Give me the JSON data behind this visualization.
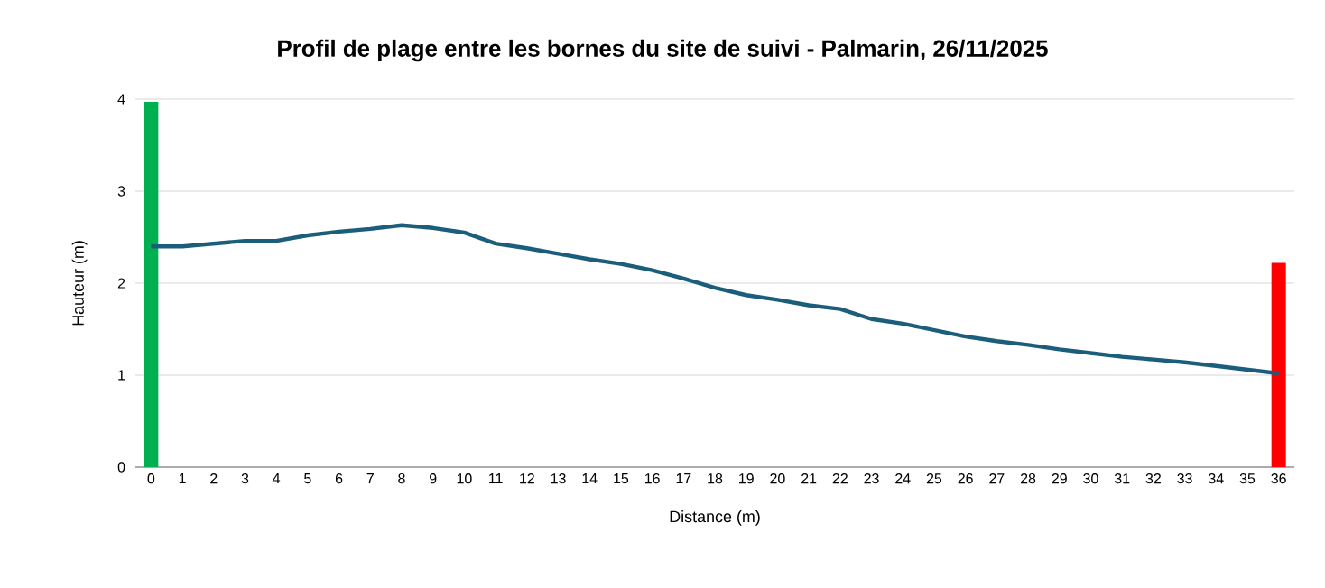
{
  "chart_data": {
    "type": "line",
    "title": "Profil de plage entre les bornes du site de suivi - Palmarin, 26/11/2025",
    "xlabel": "Distance (m)",
    "ylabel": "Hauteur (m)",
    "categories": [
      "0",
      "1",
      "2",
      "3",
      "4",
      "5",
      "6",
      "7",
      "8",
      "9",
      "10",
      "11",
      "12",
      "13",
      "14",
      "15",
      "16",
      "17",
      "18",
      "19",
      "20",
      "21",
      "22",
      "23",
      "24",
      "25",
      "26",
      "27",
      "28",
      "29",
      "30",
      "31",
      "32",
      "33",
      "34",
      "35",
      "36"
    ],
    "series": [
      {
        "type": "bar",
        "color": "#00b050",
        "values": [
          3.97,
          null,
          null,
          null,
          null,
          null,
          null,
          null,
          null,
          null,
          null,
          null,
          null,
          null,
          null,
          null,
          null,
          null,
          null,
          null,
          null,
          null,
          null,
          null,
          null,
          null,
          null,
          null,
          null,
          null,
          null,
          null,
          null,
          null,
          null,
          null,
          null
        ]
      },
      {
        "type": "bar",
        "color": "#ff0000",
        "values": [
          null,
          null,
          null,
          null,
          null,
          null,
          null,
          null,
          null,
          null,
          null,
          null,
          null,
          null,
          null,
          null,
          null,
          null,
          null,
          null,
          null,
          null,
          null,
          null,
          null,
          null,
          null,
          null,
          null,
          null,
          null,
          null,
          null,
          null,
          null,
          null,
          2.22
        ]
      },
      {
        "color": "#1b5e7b",
        "values": [
          2.4,
          2.4,
          2.43,
          2.46,
          2.46,
          2.52,
          2.56,
          2.59,
          2.63,
          2.6,
          2.55,
          2.43,
          2.38,
          2.32,
          2.26,
          2.21,
          2.14,
          2.05,
          1.95,
          1.87,
          1.82,
          1.76,
          1.72,
          1.61,
          1.56,
          1.49,
          1.42,
          1.37,
          1.33,
          1.28,
          1.24,
          1.2,
          1.17,
          1.14,
          1.1,
          1.06,
          1.02
        ]
      }
    ],
    "ylim": [
      0,
      4
    ],
    "yticks": [
      0,
      1,
      2,
      3,
      4
    ],
    "grid": "y",
    "marker": "none"
  }
}
